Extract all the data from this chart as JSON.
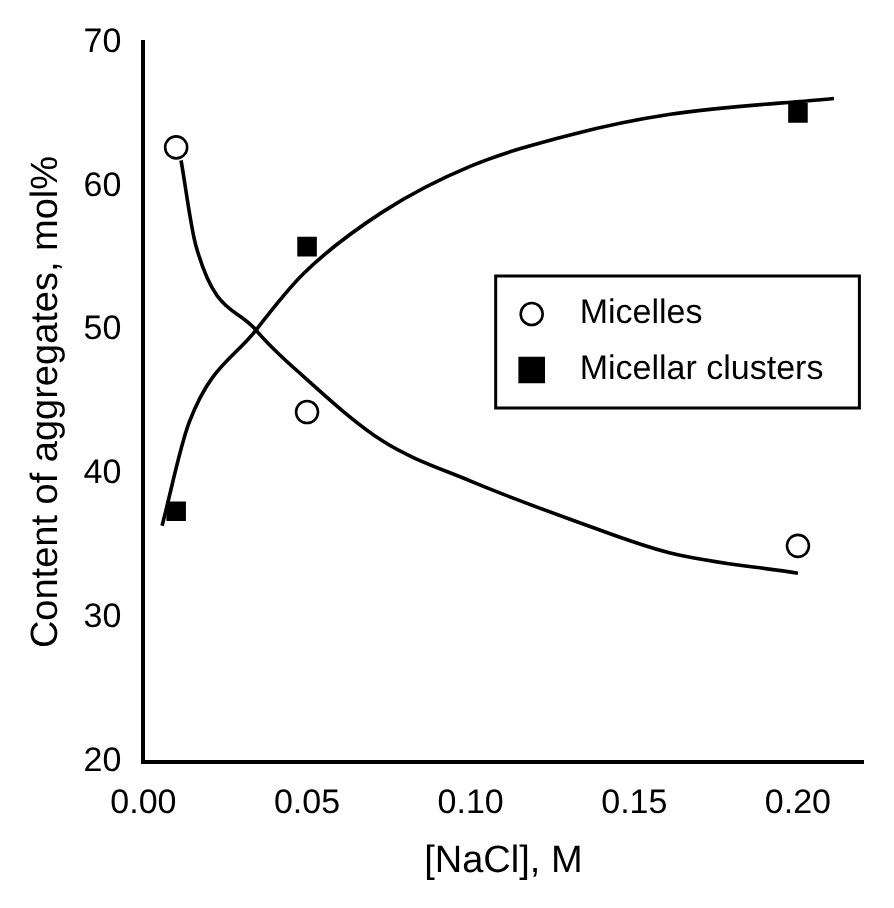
{
  "chart_data": {
    "type": "scatter",
    "xlabel": "[NaCl], M",
    "ylabel": "Content of aggregates, mol%",
    "xlim": [
      0,
      0.22
    ],
    "ylim": [
      20,
      70
    ],
    "xticks": [
      {
        "value": 0,
        "label": "0.00"
      },
      {
        "value": 0.05,
        "label": "0.05"
      },
      {
        "value": 0.1,
        "label": "0.10"
      },
      {
        "value": 0.15,
        "label": "0.15"
      },
      {
        "value": 0.2,
        "label": "0.20"
      }
    ],
    "yticks": [
      20,
      30,
      40,
      50,
      60,
      70
    ],
    "grid": false,
    "legend": "right",
    "series": [
      {
        "name": "Micelles",
        "color": "#000000",
        "marker": "circle",
        "x": [
          0.01,
          0.05,
          0.2
        ],
        "values": [
          62.7,
          44.3,
          35.0
        ]
      },
      {
        "name": "Micellar clusters",
        "color": "#000000",
        "marker": "square",
        "x": [
          0.01,
          0.05,
          0.2
        ],
        "values": [
          37.4,
          55.8,
          65.1
        ]
      },
      {
        "type": "line",
        "color": "#000000",
        "marker": "none",
        "line_style": "solid",
        "x": [
          0.0115,
          0.016,
          0.0344,
          0.0488,
          0.073,
          0.1,
          0.131,
          0.161,
          0.2
        ],
        "values": [
          61.8,
          55.9,
          50,
          46.8,
          42.3,
          39.5,
          36.8,
          34.5,
          33.1
        ]
      },
      {
        "type": "line",
        "color": "#000000",
        "marker": "none",
        "line_style": "solid",
        "x": [
          0.0057,
          0.014,
          0.0344,
          0.0488,
          0.073,
          0.1,
          0.131,
          0.161,
          0.211
        ],
        "values": [
          36.4,
          43.6,
          50,
          53.9,
          58.2,
          61.4,
          63.6,
          65,
          66.1
        ]
      }
    ]
  }
}
